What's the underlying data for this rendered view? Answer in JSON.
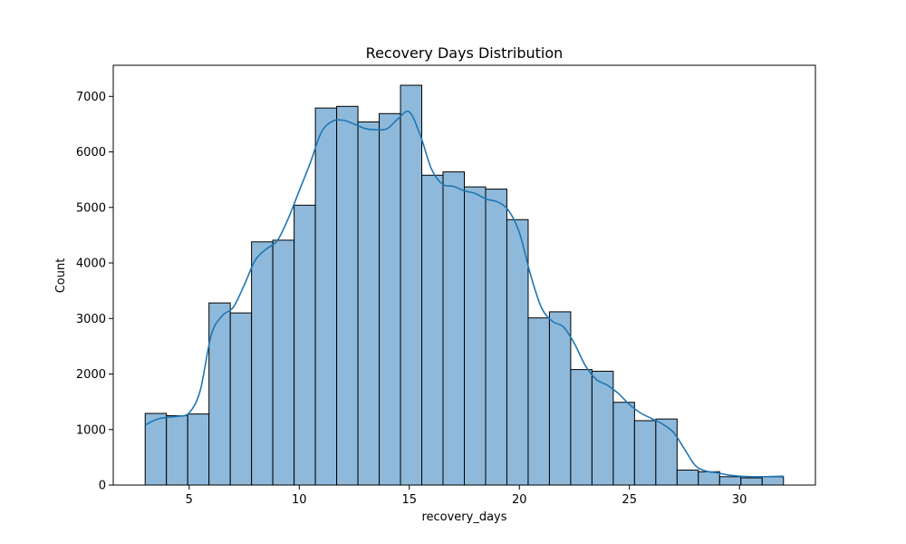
{
  "chart_data": {
    "type": "bar",
    "subtype": "histogram-with-kde",
    "title": "Recovery Days Distribution",
    "xlabel": "recovery_days",
    "ylabel": "Count",
    "xlim": [
      1.55,
      33.45
    ],
    "ylim": [
      0,
      7560
    ],
    "xticks": [
      5,
      10,
      15,
      20,
      25,
      30
    ],
    "yticks": [
      0,
      1000,
      2000,
      3000,
      4000,
      5000,
      6000,
      7000
    ],
    "grid": false,
    "bins": {
      "edges": [
        3.0,
        3.9667,
        4.9333,
        5.9,
        6.8667,
        7.8333,
        8.8,
        9.7667,
        10.7333,
        11.7,
        12.6667,
        13.6333,
        14.6,
        15.5667,
        16.5333,
        17.5,
        18.4667,
        19.4333,
        20.4,
        21.3667,
        22.3333,
        23.3,
        24.2667,
        25.2333,
        26.2,
        27.1667,
        28.1333,
        29.1,
        30.0667,
        31.0333,
        32.0
      ],
      "counts": [
        1290,
        1250,
        1280,
        3280,
        3100,
        4380,
        4410,
        5040,
        6790,
        6820,
        6540,
        6690,
        7200,
        5580,
        5640,
        5370,
        5330,
        4780,
        3010,
        3120,
        2080,
        2050,
        1490,
        1160,
        1190,
        270,
        240,
        150,
        130,
        150
      ]
    },
    "kde": {
      "x": [
        3.0,
        3.5,
        4.0,
        4.5,
        5.0,
        5.5,
        6.0,
        6.5,
        7.0,
        7.5,
        8.0,
        8.5,
        9.0,
        9.5,
        10.0,
        10.5,
        11.0,
        11.5,
        12.0,
        12.5,
        13.0,
        13.5,
        14.0,
        14.5,
        15.0,
        15.5,
        16.0,
        16.5,
        17.0,
        17.5,
        18.0,
        18.5,
        19.0,
        19.5,
        20.0,
        20.5,
        21.0,
        21.5,
        22.0,
        22.5,
        23.0,
        23.5,
        24.0,
        24.5,
        25.0,
        25.5,
        26.0,
        26.5,
        27.0,
        27.5,
        28.0,
        28.5,
        29.0,
        29.5,
        30.0,
        30.5,
        31.0,
        31.5,
        32.0
      ],
      "y": [
        1080,
        1180,
        1220,
        1240,
        1300,
        1700,
        2700,
        3050,
        3200,
        3600,
        4050,
        4250,
        4400,
        4800,
        5300,
        5800,
        6350,
        6550,
        6570,
        6500,
        6420,
        6400,
        6420,
        6600,
        6720,
        6300,
        5700,
        5420,
        5380,
        5300,
        5250,
        5150,
        5100,
        4950,
        4550,
        3800,
        3200,
        2950,
        2850,
        2550,
        2150,
        1900,
        1800,
        1650,
        1450,
        1300,
        1200,
        1100,
        950,
        650,
        350,
        250,
        220,
        180,
        160,
        150,
        150,
        155,
        160
      ]
    },
    "colors": {
      "bar_fill": "#8fb9da",
      "bar_edge": "#000000",
      "kde_line": "#1f77b4"
    }
  }
}
